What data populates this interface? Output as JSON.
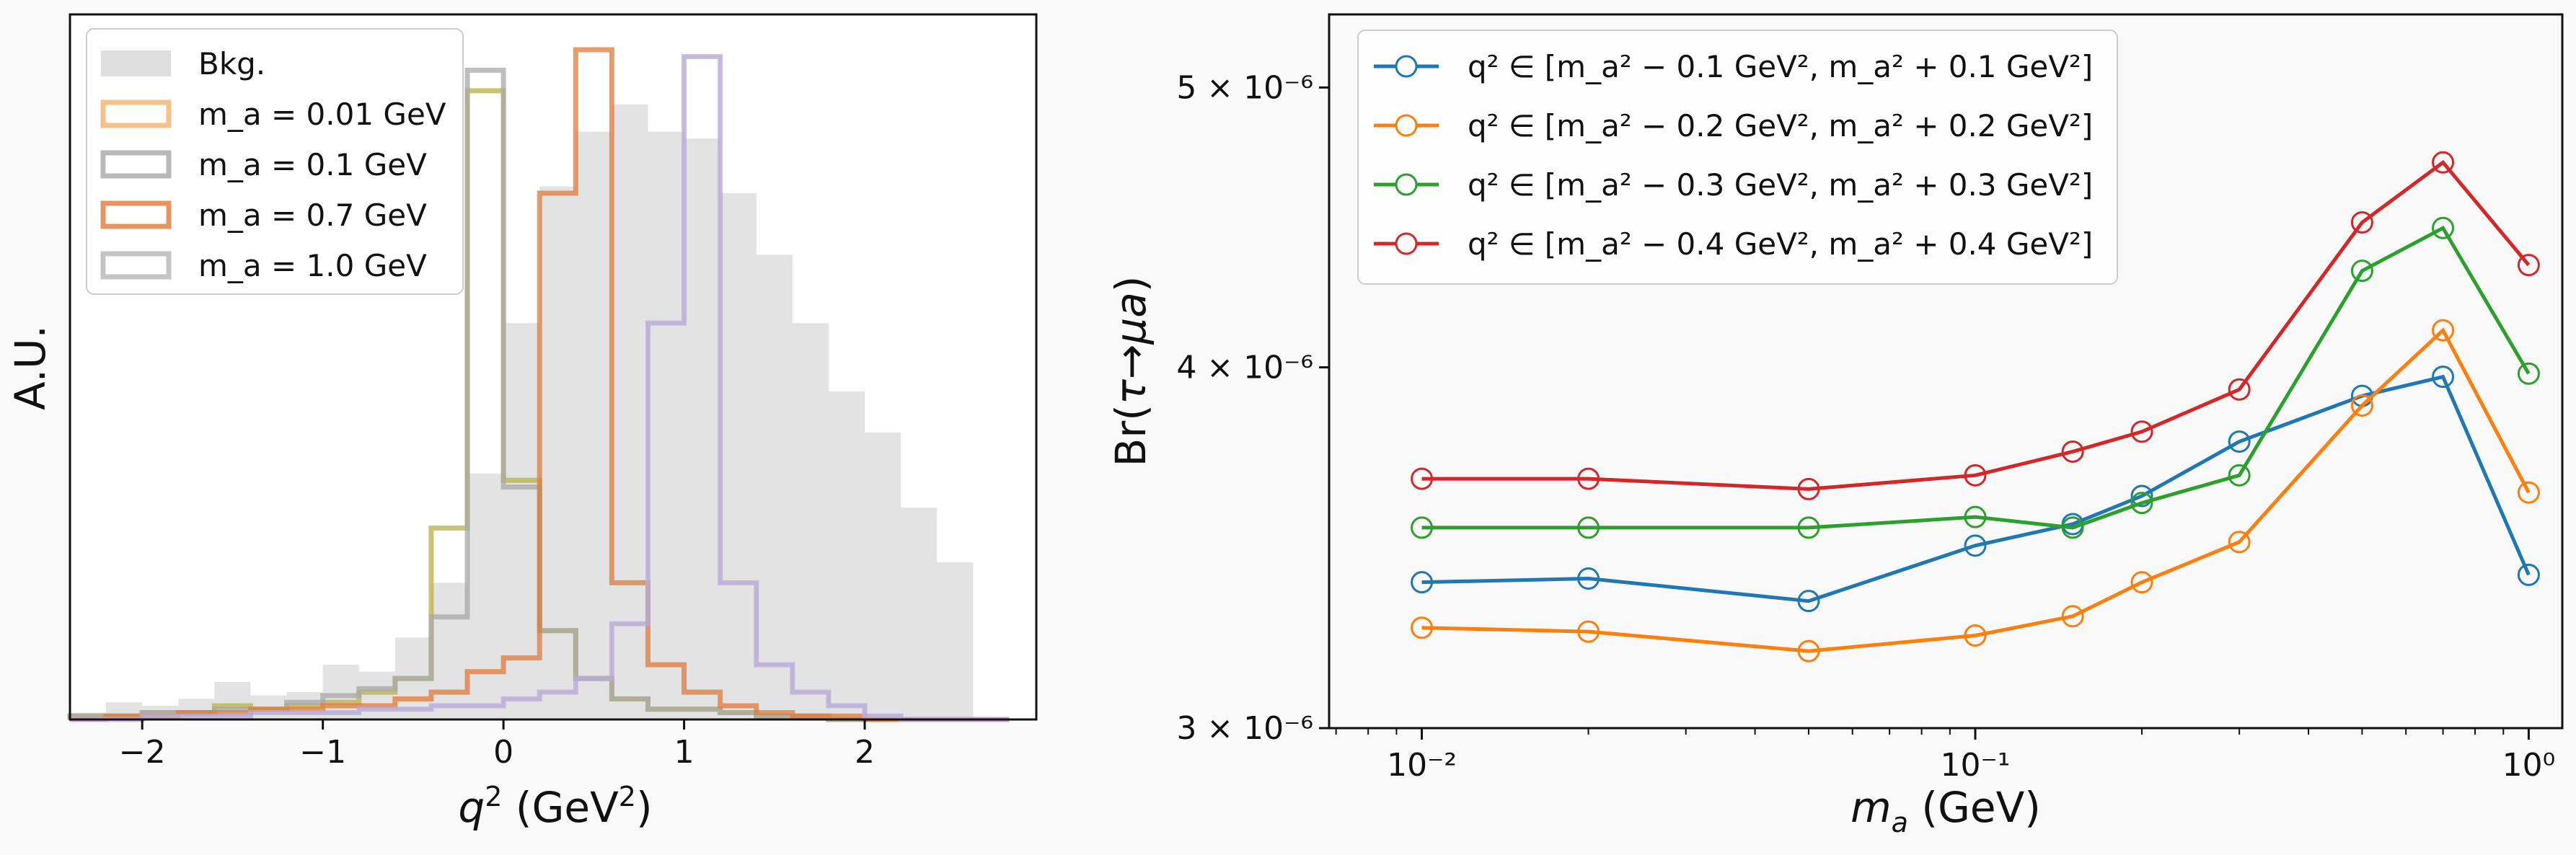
{
  "chart_data": [
    {
      "type": "histogram",
      "xlabel": "q² (GeV²)",
      "ylabel": "A.U.",
      "xlim": [
        -2.4,
        2.95
      ],
      "xticks": [
        -2,
        -1,
        0,
        1,
        2
      ],
      "yticks": [],
      "grid": false,
      "legend_position": "upper-left",
      "bin_edges": [
        -2.4,
        -2.2,
        -2.0,
        -1.8,
        -1.6,
        -1.4,
        -1.2,
        -1.0,
        -0.8,
        -0.6,
        -0.4,
        -0.2,
        0.0,
        0.2,
        0.4,
        0.6,
        0.8,
        1.0,
        1.2,
        1.4,
        1.6,
        1.8,
        2.0,
        2.2,
        2.4,
        2.6,
        2.8
      ],
      "series": [
        {
          "name": "Bkg.",
          "style": "filled",
          "color": "#c8c8c8",
          "values": [
            0.01,
            0.025,
            0.02,
            0.03,
            0.055,
            0.035,
            0.04,
            0.08,
            0.07,
            0.12,
            0.2,
            0.36,
            0.58,
            0.78,
            0.86,
            0.9,
            0.86,
            0.85,
            0.77,
            0.68,
            0.58,
            0.48,
            0.42,
            0.31,
            0.23,
            0.0
          ]
        },
        {
          "name": "m_a = 0.01 GeV",
          "style": "step",
          "color": "#f5b06b",
          "values": [
            0.005,
            0.005,
            0.01,
            0.01,
            0.02,
            0.015,
            0.02,
            0.025,
            0.04,
            0.06,
            0.28,
            0.92,
            0.35,
            0.13,
            0.06,
            0.03,
            0.015,
            0.015,
            0.01,
            0.005,
            0.005,
            0.0,
            0.0,
            0.0,
            0.0,
            0.0
          ]
        },
        {
          "name": "m_a = 0.1 GeV",
          "style": "step",
          "color": "#a8a8a8",
          "values": [
            0.005,
            0.005,
            0.01,
            0.01,
            0.015,
            0.015,
            0.025,
            0.035,
            0.045,
            0.06,
            0.15,
            0.95,
            0.34,
            0.13,
            0.06,
            0.03,
            0.015,
            0.015,
            0.01,
            0.005,
            0.005,
            0.0,
            0.0,
            0.0,
            0.0,
            0.0
          ]
        },
        {
          "name": "m_a = 0.7 GeV",
          "style": "step",
          "color": "#e07b39",
          "values": [
            0.0,
            0.005,
            0.005,
            0.01,
            0.01,
            0.015,
            0.015,
            0.02,
            0.02,
            0.03,
            0.04,
            0.07,
            0.09,
            0.77,
            0.98,
            0.2,
            0.08,
            0.04,
            0.02,
            0.01,
            0.005,
            0.005,
            0.0,
            0.0,
            0.0,
            0.0
          ]
        },
        {
          "name": "m_a = 1.0 GeV",
          "style": "step",
          "color": "#b5b5b5",
          "values": [
            0.0,
            0.0,
            0.005,
            0.005,
            0.005,
            0.01,
            0.01,
            0.01,
            0.015,
            0.015,
            0.02,
            0.02,
            0.03,
            0.04,
            0.06,
            0.14,
            0.58,
            0.97,
            0.2,
            0.08,
            0.04,
            0.02,
            0.005,
            0.0,
            0.0,
            0.0
          ]
        }
      ],
      "overlay_colors": {
        "olive": "#a8b84a",
        "purple": "#b9a8e6",
        "pink": "#f28fa0"
      }
    },
    {
      "type": "line",
      "xlabel": "m_a (GeV)",
      "ylabel": "Br(τ→μa)",
      "xscale": "log",
      "yscale": "log",
      "xlim": [
        0.0068,
        1.15
      ],
      "ylim": [
        3e-06,
        5.3e-06
      ],
      "xtick_labels": [
        "10⁻²",
        "10⁻¹",
        "10⁰"
      ],
      "ytick_labels": [
        "3 × 10⁻⁶",
        "4 × 10⁻⁶",
        "5 × 10⁻⁶"
      ],
      "grid": false,
      "legend_position": "upper-left",
      "x": [
        0.01,
        0.02,
        0.05,
        0.1,
        0.15,
        0.2,
        0.3,
        0.5,
        0.7,
        1.0
      ],
      "series": [
        {
          "name": "q² ∈ [m_a² − 0.1 GeV², m_a² + 0.1 GeV²]",
          "color": "#1f77b4",
          "values": [
            3.37e-06,
            3.38e-06,
            3.32e-06,
            3.47e-06,
            3.53e-06,
            3.61e-06,
            3.77e-06,
            3.91e-06,
            3.97e-06,
            3.39e-06
          ]
        },
        {
          "name": "q² ∈ [m_a² − 0.2 GeV², m_a² + 0.2 GeV²]",
          "color": "#ff7f0e",
          "values": [
            3.25e-06,
            3.24e-06,
            3.19e-06,
            3.23e-06,
            3.28e-06,
            3.37e-06,
            3.48e-06,
            3.88e-06,
            4.12e-06,
            3.62e-06
          ]
        },
        {
          "name": "q² ∈ [m_a² − 0.3 GeV², m_a² + 0.3 GeV²]",
          "color": "#2ca02c",
          "values": [
            3.52e-06,
            3.52e-06,
            3.52e-06,
            3.55e-06,
            3.52e-06,
            3.59e-06,
            3.67e-06,
            4.32e-06,
            4.47e-06,
            3.98e-06
          ]
        },
        {
          "name": "q² ∈ [m_a² − 0.4 GeV², m_a² + 0.4 GeV²]",
          "color": "#d62728",
          "values": [
            3.66e-06,
            3.66e-06,
            3.63e-06,
            3.67e-06,
            3.74e-06,
            3.8e-06,
            3.93e-06,
            4.49e-06,
            4.71e-06,
            4.34e-06
          ]
        }
      ]
    }
  ]
}
